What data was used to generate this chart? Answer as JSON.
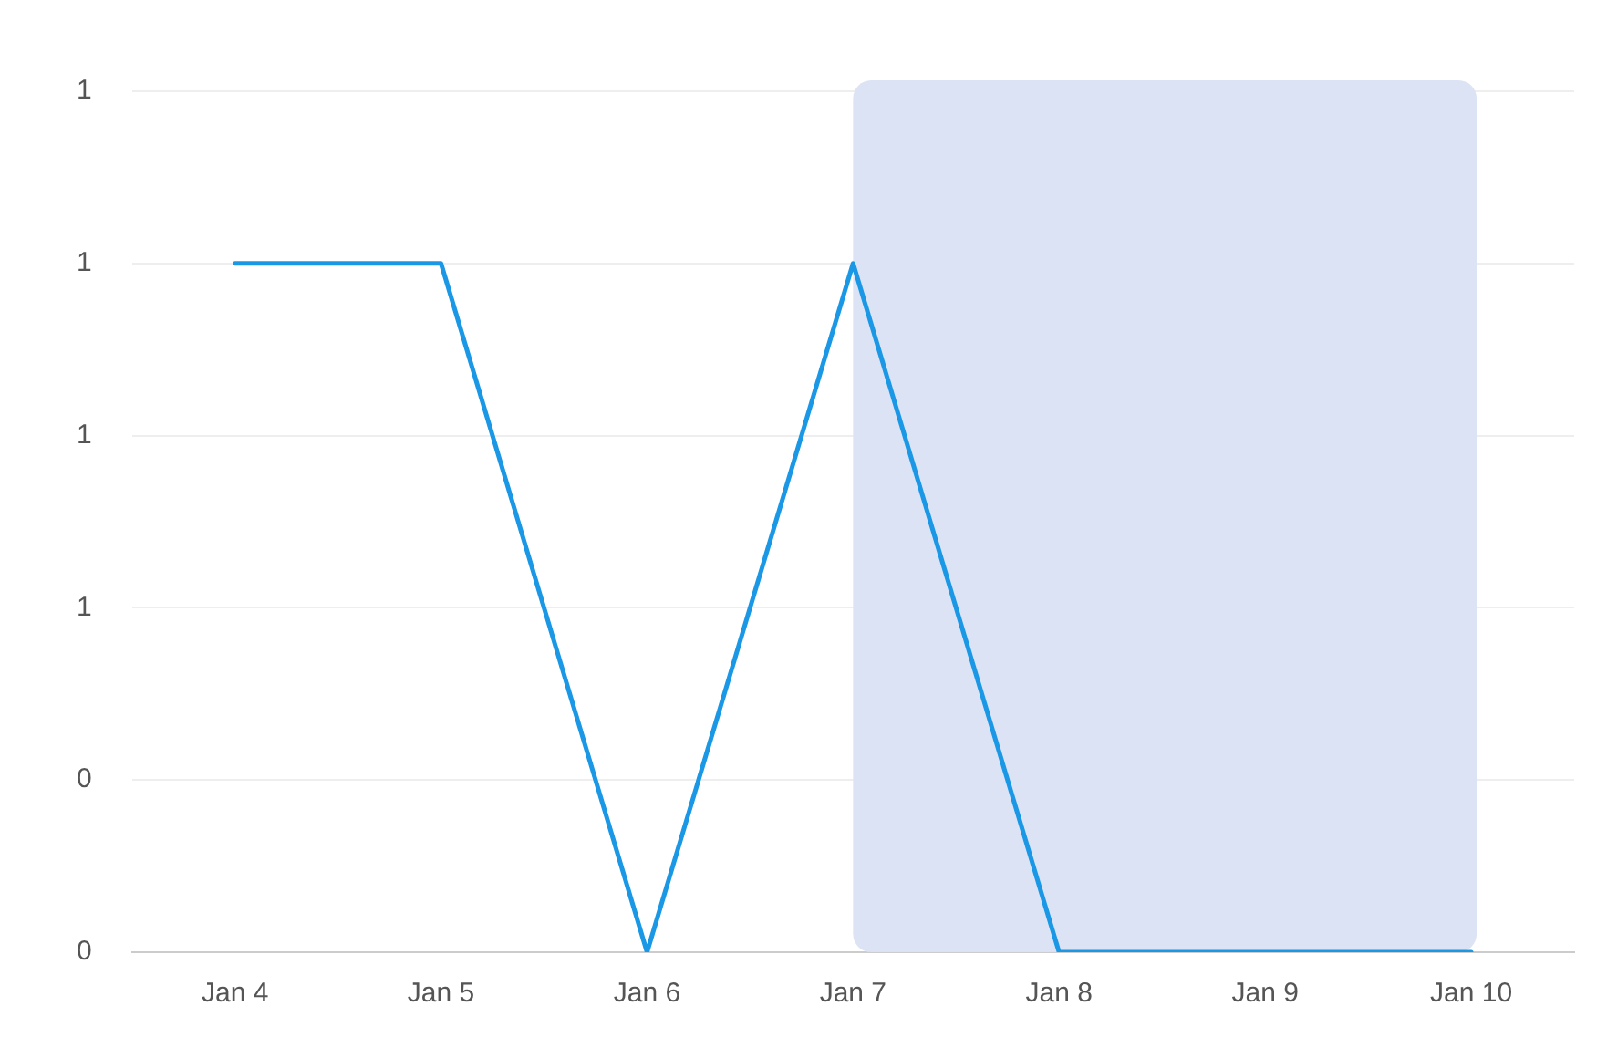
{
  "chart_data": {
    "type": "line",
    "categories": [
      "Jan 4",
      "Jan 5",
      "Jan 6",
      "Jan 7",
      "Jan 8",
      "Jan 9",
      "Jan 10"
    ],
    "series": [
      {
        "color": "#1a98e6",
        "values": [
          1,
          1,
          0,
          1,
          0,
          0,
          0
        ]
      }
    ],
    "ylim": [
      0,
      1.25
    ],
    "yticks": [
      {
        "value": 0,
        "label": "0"
      },
      {
        "value": 0.25,
        "label": "0"
      },
      {
        "value": 0.5,
        "label": "1"
      },
      {
        "value": 0.75,
        "label": "1"
      },
      {
        "value": 1,
        "label": "1"
      },
      {
        "value": 1.25,
        "label": "1"
      }
    ],
    "bands": [
      {
        "axis": "x",
        "from": "Jan 7",
        "to": "Jan 10",
        "color": "#d9e2f3"
      }
    ],
    "grid": "y",
    "legend": false,
    "marker": "none",
    "line_style": "solid"
  }
}
